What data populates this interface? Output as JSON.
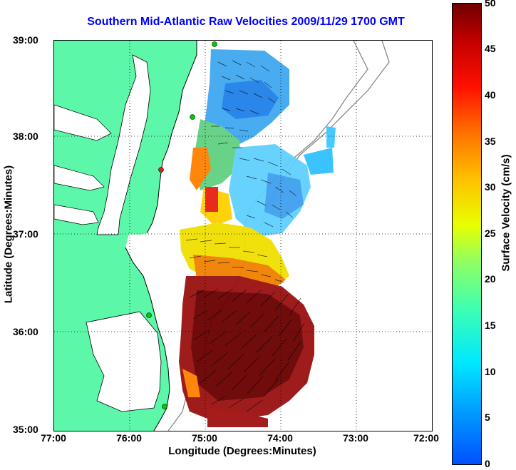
{
  "title": "Southern Mid-Atlantic Raw Velocities 2009/11/29 1700 GMT",
  "axes": {
    "xlabel": "Longitude (Degrees:Minutes)",
    "ylabel": "Latitude (Degrees:Minutes)",
    "lat_ticks": [
      "39:00",
      "38:00",
      "37:00",
      "36:00",
      "35:00"
    ],
    "lon_ticks": [
      "77:00",
      "76:00",
      "75:00",
      "74:00",
      "73:00",
      "72:00"
    ]
  },
  "colorbar": {
    "label": "Surface Velocity (cm/s)",
    "ticks": [
      "50",
      "45",
      "40",
      "35",
      "30",
      "25",
      "20",
      "15",
      "10",
      "5",
      "0"
    ],
    "min": 0,
    "max": 50
  },
  "colors": {
    "land": "#5cf7a8",
    "coastline": "#000000",
    "grid": "#000000",
    "station": "#00cc00",
    "title": "#0000ff"
  }
}
